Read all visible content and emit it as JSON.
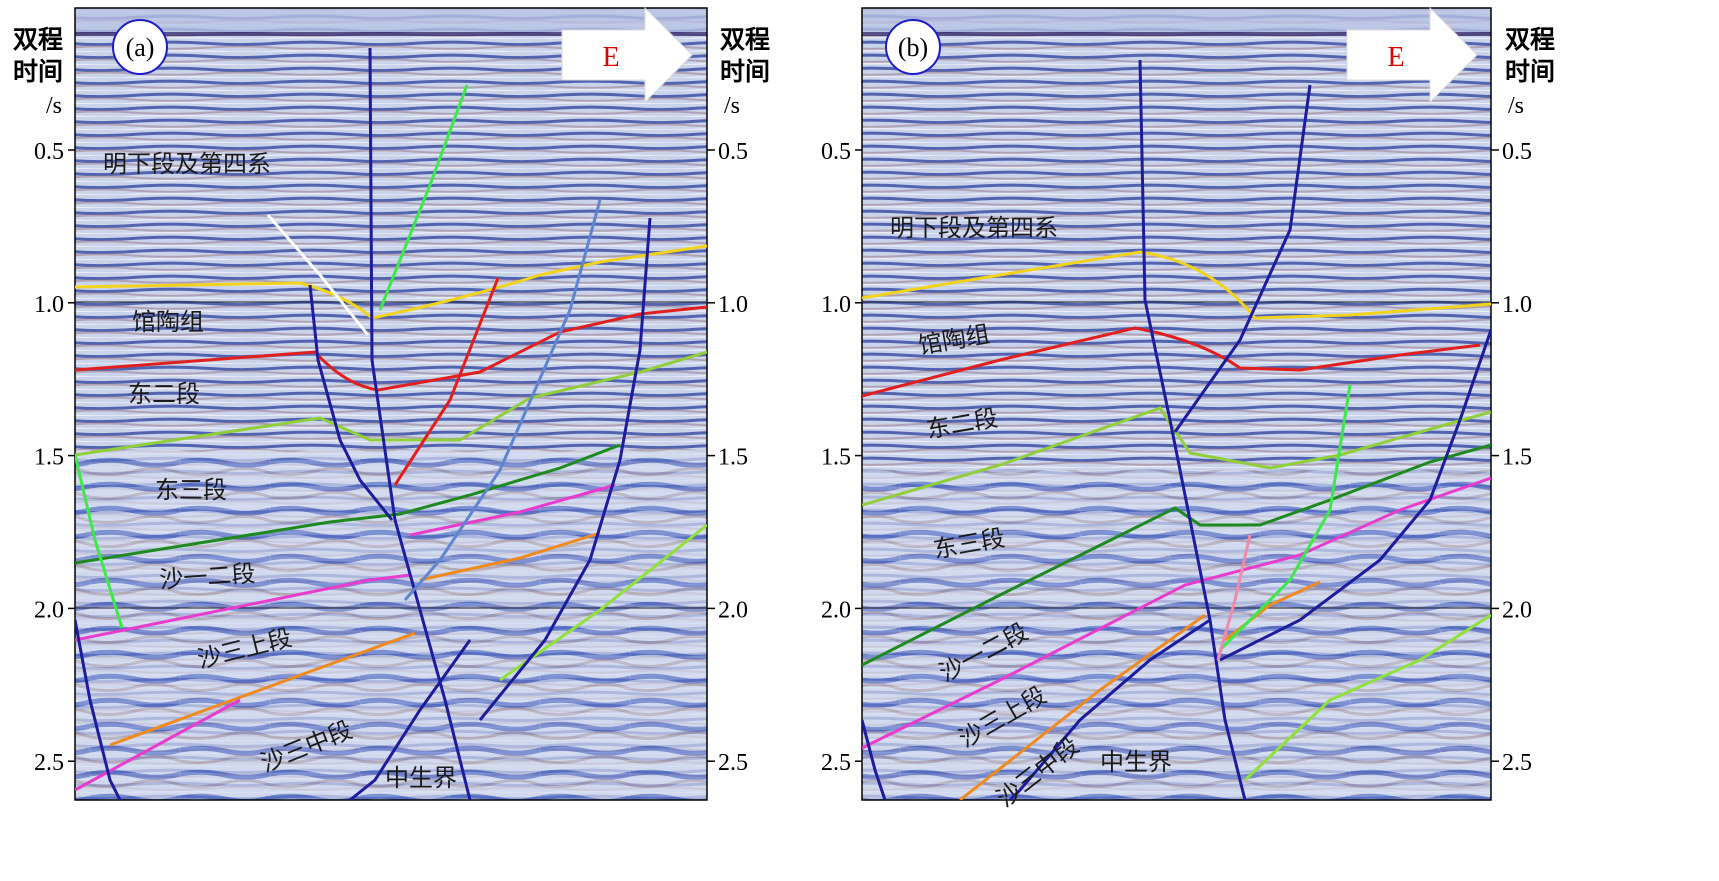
{
  "figure": {
    "axis_title_line1": "双程",
    "axis_title_line2": "时间",
    "axis_unit": "/s",
    "direction": "E",
    "ticks": [
      "0.5",
      "1.0",
      "1.5",
      "2.0",
      "2.5"
    ]
  },
  "panels": [
    {
      "label": "(a)",
      "units": [
        "明下段及第四系",
        "馆陶组",
        "东二段",
        "东三段",
        "沙一二段",
        "沙三上段",
        "沙三中段",
        "中生界"
      ]
    },
    {
      "label": "(b)",
      "units": [
        "明下段及第四系",
        "馆陶组",
        "东二段",
        "东三段",
        "沙一二段",
        "沙三上段",
        "沙三中段",
        "中生界"
      ]
    }
  ],
  "colors": {
    "horizon_Nm": "#f2d21b",
    "horizon_Ng": "#e0201f",
    "horizon_Ed2": "#8fcf3a",
    "horizon_Ed3": "#1e8a1e",
    "horizon_Es12": "#e83ccf",
    "horizon_Es3u": "#f08a1e",
    "fault_main": "#1c1c9c",
    "fault_green": "#3ee84a",
    "fault_steel": "#5e86d0",
    "arrow": "#ffffff"
  }
}
